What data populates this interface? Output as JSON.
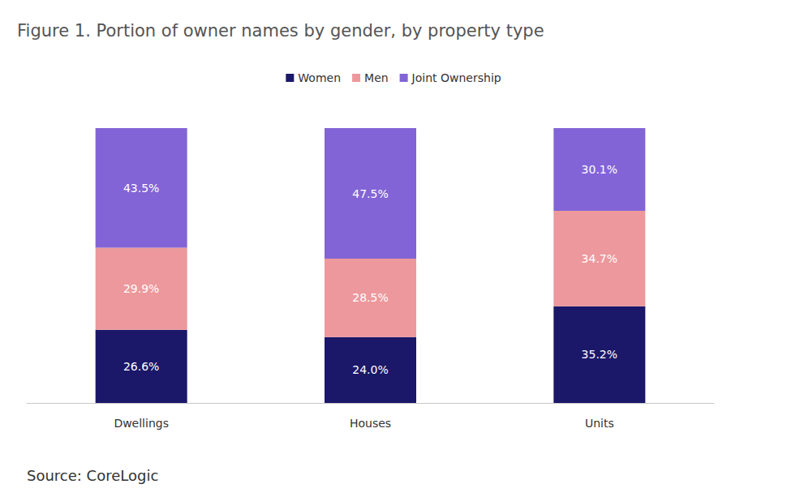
{
  "chart_data": {
    "type": "bar",
    "title": "Figure 1. Portion of owner names by gender, by property type",
    "source": "Source: CoreLogic",
    "categories": [
      "Dwellings",
      "Houses",
      "Units"
    ],
    "series": [
      {
        "name": "Women",
        "color": "#1b1769",
        "values": [
          26.6,
          24.0,
          35.2
        ],
        "value_labels": [
          "26.6%",
          "24.0%",
          "35.2%"
        ]
      },
      {
        "name": "Men",
        "color": "#ec989c",
        "values": [
          29.9,
          28.5,
          34.7
        ],
        "value_labels": [
          "29.9%",
          "28.5%",
          "34.7%"
        ]
      },
      {
        "name": "Joint Ownership",
        "color": "#8264d6",
        "values": [
          43.5,
          47.5,
          30.1
        ],
        "value_labels": [
          "43.5%",
          "47.5%",
          "30.1%"
        ]
      }
    ],
    "ylim": [
      0,
      100
    ],
    "stacked": true,
    "data_labels": true,
    "grid": false,
    "legend": "top",
    "tick_labels": "x"
  }
}
